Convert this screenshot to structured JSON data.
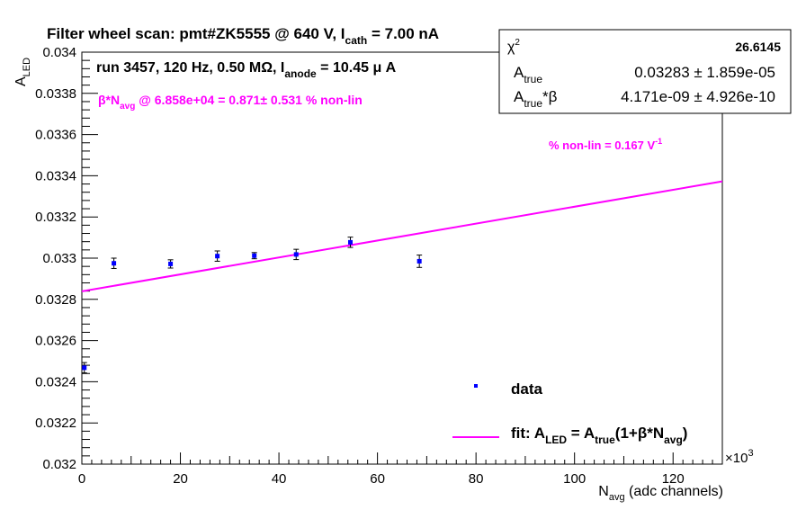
{
  "chart_data": {
    "type": "scatter",
    "title": {
      "pre": "Filter wheel scan: pmt#ZK5555 @   640 V, I",
      "sub": "cath",
      "post": " = 7.00 nA"
    },
    "run_info": {
      "pre": "run 3457, 120 Hz, 0.50 MΩ, I",
      "sub": "anode",
      "post": " = 10.45 μ A"
    },
    "beta_text": {
      "pre": "β*N",
      "sub": "avg",
      "post": " @ 6.858e+04 = 0.871± 0.531 % non-lin"
    },
    "nonlin_text": {
      "pre": "% non-lin = 0.167 V",
      "sup": "-1"
    },
    "stats_box": {
      "chi2_label": "χ",
      "chi2_sup": "2",
      "chi2_value": "26.6145",
      "a_true_label": "A",
      "a_true_sub": "true",
      "a_true_value": "0.03283 ± 1.859e-05",
      "a_beta_label": "A",
      "a_beta_sub": "true",
      "a_beta_post": "*β",
      "a_beta_value": "4.171e-09 ± 4.926e-10"
    },
    "xlabel": {
      "pre": "N",
      "sub": "avg",
      "post": " (adc channels)"
    },
    "ylabel": {
      "pre": "A",
      "sub": "LED"
    },
    "x_multiplier": "×10",
    "x_multiplier_sup": "3",
    "xlim": [
      0,
      130
    ],
    "ylim": [
      0.032,
      0.034
    ],
    "x_ticks": [
      "0",
      "20",
      "40",
      "60",
      "80",
      "100",
      "120"
    ],
    "y_ticks": [
      "0.032",
      "0.0322",
      "0.0324",
      "0.0326",
      "0.0328",
      "0.033",
      "0.0332",
      "0.0334",
      "0.0336",
      "0.0338",
      "0.034"
    ],
    "series": [
      {
        "name": "data",
        "color": "#0000ff",
        "points": [
          {
            "x": 0.5,
            "y": 0.032468,
            "err": 2.5e-05
          },
          {
            "x": 6.5,
            "y": 0.032975,
            "err": 2.5e-05
          },
          {
            "x": 18.0,
            "y": 0.032972,
            "err": 2e-05
          },
          {
            "x": 27.5,
            "y": 0.03301,
            "err": 2.5e-05
          },
          {
            "x": 35.0,
            "y": 0.033012,
            "err": 1.5e-05
          },
          {
            "x": 43.5,
            "y": 0.033018,
            "err": 2.5e-05
          },
          {
            "x": 54.5,
            "y": 0.033077,
            "err": 2.5e-05
          },
          {
            "x": 68.5,
            "y": 0.032985,
            "err": 3e-05
          }
        ]
      },
      {
        "name": "fit",
        "legend_label": {
          "pre": "fit: A",
          "sub1": "LED",
          "mid": " = A",
          "sub2": "true",
          "mid2": "(1+β*N",
          "sub3": "avg",
          "post": ")"
        },
        "color": "#ff00ff",
        "line": {
          "x": [
            0,
            130
          ],
          "y": [
            0.032839,
            0.033373
          ]
        }
      }
    ],
    "legend": {
      "data_label": "data",
      "placement": "bottom-right"
    }
  }
}
